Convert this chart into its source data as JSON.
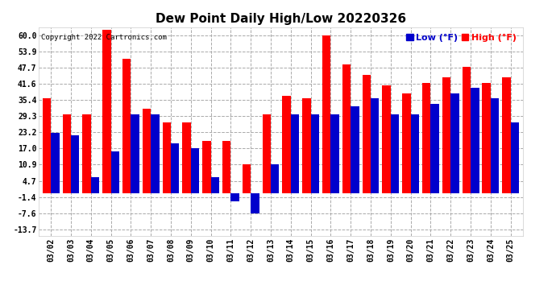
{
  "title": "Dew Point Daily High/Low 20220326",
  "copyright": "Copyright 2022 Cartronics.com",
  "legend_low": "Low",
  "legend_high": "High",
  "legend_unit": "(°F)",
  "categories": [
    "03/02",
    "03/03",
    "03/04",
    "03/05",
    "03/06",
    "03/07",
    "03/08",
    "03/09",
    "03/10",
    "03/11",
    "03/12",
    "03/13",
    "03/14",
    "03/15",
    "03/16",
    "03/17",
    "03/18",
    "03/19",
    "03/20",
    "03/21",
    "03/22",
    "03/23",
    "03/24",
    "03/25"
  ],
  "high_values": [
    36.0,
    30.0,
    30.0,
    62.0,
    51.0,
    32.0,
    27.0,
    27.0,
    20.0,
    20.0,
    11.0,
    30.0,
    37.0,
    36.0,
    60.0,
    49.0,
    45.0,
    41.0,
    38.0,
    42.0,
    44.0,
    48.0,
    42.0,
    44.0
  ],
  "low_values": [
    23.0,
    22.0,
    6.0,
    16.0,
    30.0,
    30.0,
    19.0,
    17.0,
    6.0,
    -3.0,
    -7.5,
    11.0,
    30.0,
    30.0,
    30.0,
    33.0,
    36.0,
    30.0,
    30.0,
    34.0,
    38.0,
    40.0,
    36.0,
    27.0
  ],
  "high_color": "#ff0000",
  "low_color": "#0000cc",
  "bg_color": "#ffffff",
  "grid_color": "#aaaaaa",
  "yticks": [
    -13.7,
    -7.6,
    -1.4,
    4.7,
    10.9,
    17.0,
    23.2,
    29.3,
    35.4,
    41.6,
    47.7,
    53.9,
    60.0
  ],
  "ymin": -16.0,
  "ymax": 63.0,
  "bar_width": 0.42,
  "title_fontsize": 11,
  "tick_fontsize": 7,
  "legend_fontsize": 8,
  "fig_width": 6.9,
  "fig_height": 3.75,
  "dpi": 100
}
